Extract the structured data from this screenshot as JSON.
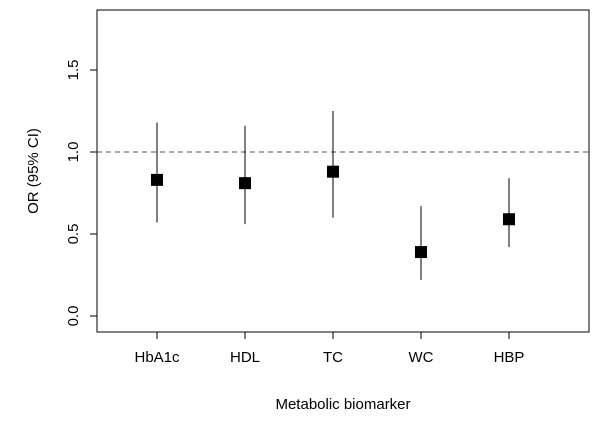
{
  "chart_data": {
    "type": "scatter",
    "title": "",
    "xlabel": "Metabolic biomarker",
    "ylabel": "OR (95% CI)",
    "categories": [
      "HbA1c",
      "HDL",
      "TC",
      "WC",
      "HBP"
    ],
    "series": [
      {
        "estimates": [
          0.83,
          0.81,
          0.88,
          0.39,
          0.59
        ],
        "lower": [
          0.57,
          0.56,
          0.6,
          0.22,
          0.42
        ],
        "upper": [
          1.18,
          1.16,
          1.25,
          0.67,
          0.84
        ]
      }
    ],
    "yticks": [
      "0.0",
      "0.5",
      "1.0",
      "1.5"
    ],
    "ytick_values": [
      0,
      0.5,
      1.0,
      1.5
    ],
    "ylim": [
      -0.06,
      1.86
    ],
    "reference_line": 1.0,
    "grid": false,
    "colors": {
      "marker": "#000000",
      "whisker": "#000000",
      "reference": "#555555",
      "axis": "#000000"
    }
  }
}
